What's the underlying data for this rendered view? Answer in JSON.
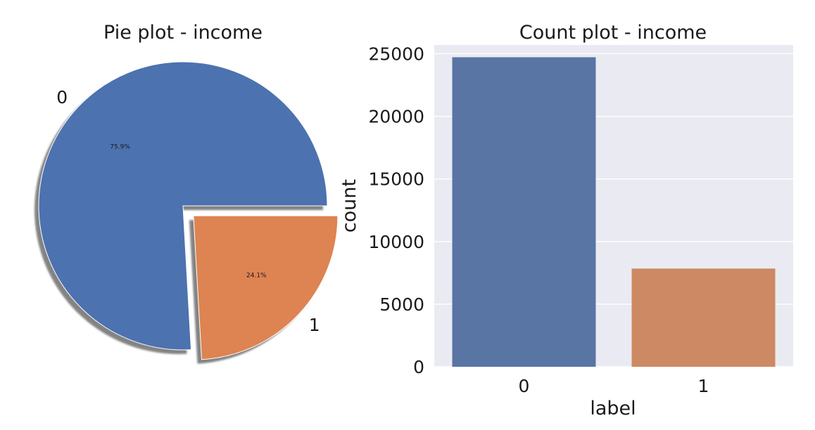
{
  "chart_data": [
    {
      "type": "pie",
      "title": "Pie plot - income",
      "labels": [
        "0",
        "1"
      ],
      "values": [
        75.9,
        24.1
      ],
      "value_labels": [
        "75.9%",
        "24.1%"
      ],
      "explode": [
        0,
        0.1
      ],
      "shadow": true,
      "colors": [
        "#4c72b0",
        "#dd8452"
      ]
    },
    {
      "type": "bar",
      "title": "Count plot - income",
      "categories": [
        "0",
        "1"
      ],
      "values": [
        24720,
        7841
      ],
      "xlabel": "label",
      "ylabel": "count",
      "ylim": [
        0,
        25700
      ],
      "yticks": [
        0,
        5000,
        10000,
        15000,
        20000,
        25000
      ],
      "ytick_labels": [
        "0",
        "5000",
        "10000",
        "15000",
        "20000",
        "25000"
      ],
      "grid": true,
      "colors": [
        "#5975a4",
        "#cc8963"
      ],
      "axes_background": "#eaeaf2"
    }
  ]
}
